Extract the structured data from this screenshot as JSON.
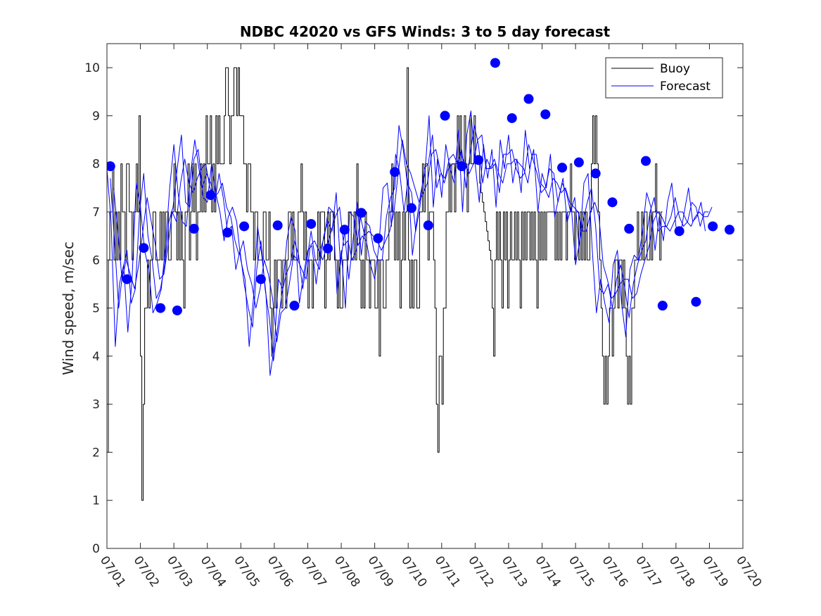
{
  "chart_data": {
    "type": "line",
    "title": "NDBC 42020 vs GFS Winds: 3 to 5 day forecast",
    "xlabel": "",
    "ylabel": "Wind speed, m/sec",
    "xlim": [
      0,
      19
    ],
    "ylim": [
      0,
      10.5
    ],
    "x_tick_labels": [
      "07/01",
      "07/02",
      "07/03",
      "07/04",
      "07/05",
      "07/06",
      "07/07",
      "07/08",
      "07/09",
      "07/10",
      "07/11",
      "07/12",
      "07/13",
      "07/14",
      "07/15",
      "07/16",
      "07/17",
      "07/18",
      "07/19",
      "07/20"
    ],
    "y_ticks": [
      0,
      1,
      2,
      3,
      4,
      5,
      6,
      7,
      8,
      9,
      10
    ],
    "grid": false,
    "legend": {
      "placement": "top-right",
      "entries": [
        "Buoy",
        "Forecast"
      ]
    },
    "colors": {
      "buoy": "#000000",
      "forecast": "#0000ff",
      "markers": "#0000ff"
    },
    "series": [
      {
        "name": "Buoy",
        "x_start": 0,
        "x_step": 0.0417,
        "values": [
          2,
          6,
          7,
          7,
          8,
          6,
          7,
          6,
          7,
          6,
          8,
          7,
          7,
          6,
          8,
          8,
          7,
          7,
          6,
          7,
          7,
          8,
          7,
          9,
          4,
          1,
          3,
          5,
          5,
          6,
          5,
          6,
          6,
          7,
          7,
          6,
          6,
          6,
          7,
          6,
          7,
          6,
          7,
          7,
          6,
          6,
          7,
          7,
          8,
          7,
          6,
          7,
          6,
          7,
          6,
          5,
          7,
          7,
          8,
          6,
          7,
          8,
          7,
          8,
          6,
          7,
          7,
          8,
          7,
          8,
          7,
          9,
          8,
          8,
          9,
          7,
          8,
          7,
          9,
          8,
          9,
          8,
          8,
          8,
          9,
          10,
          10,
          9,
          8,
          9,
          9,
          10,
          10,
          9,
          10,
          9,
          9,
          9,
          8,
          8,
          7,
          8,
          8,
          7,
          7,
          6,
          7,
          7,
          6,
          6,
          6,
          6,
          7,
          7,
          6,
          6,
          7,
          5,
          4,
          5,
          6,
          5,
          6,
          6,
          6,
          5,
          6,
          6,
          5,
          6,
          7,
          7,
          6,
          7,
          6,
          6,
          6,
          7,
          7,
          8,
          7,
          6,
          7,
          6,
          5,
          6,
          6,
          5,
          6,
          6,
          6,
          7,
          6,
          7,
          7,
          7,
          5,
          6,
          7,
          6,
          7,
          7,
          7,
          6,
          6,
          5,
          6,
          5,
          5,
          6,
          6,
          6,
          6,
          7,
          7,
          6,
          6,
          7,
          6,
          8,
          7,
          6,
          5,
          6,
          5,
          7,
          6,
          6,
          5,
          6,
          6,
          6,
          5,
          5,
          6,
          4,
          6,
          6,
          5,
          5,
          6,
          6,
          7,
          7,
          8,
          7,
          6,
          7,
          6,
          7,
          5,
          6,
          7,
          6,
          7,
          10,
          6,
          5,
          6,
          5,
          6,
          6,
          5,
          5,
          7,
          7,
          8,
          7,
          8,
          8,
          6,
          7,
          7,
          7,
          6,
          5,
          3,
          2,
          4,
          4,
          3,
          5,
          5,
          7,
          7,
          8,
          7,
          8,
          8,
          7,
          8,
          9,
          8,
          9,
          8,
          8,
          9,
          8,
          7,
          8,
          9,
          8,
          8,
          9,
          8,
          8,
          8,
          7.6,
          7.4,
          7.2,
          7.0,
          6.8,
          6.6,
          6.4,
          6.2,
          6,
          5,
          4,
          6,
          7,
          6,
          7,
          6,
          5,
          7,
          6,
          7,
          5,
          6,
          7,
          6,
          6,
          7,
          6,
          7,
          6,
          5,
          7,
          6,
          7,
          6,
          7,
          7,
          6,
          7,
          6,
          7,
          6,
          5,
          7,
          6,
          7,
          6,
          7,
          6,
          7,
          7,
          7,
          7,
          7,
          7,
          6,
          7,
          6,
          7,
          6,
          7,
          7,
          7,
          6,
          7,
          7,
          8,
          7,
          7,
          6,
          7,
          7,
          6,
          7,
          6,
          7,
          6,
          7,
          6,
          6,
          7,
          8,
          9,
          8,
          9,
          8,
          7,
          6,
          5,
          4,
          3,
          4,
          3,
          4,
          5,
          5,
          4,
          5,
          6,
          6,
          5,
          6,
          6,
          5,
          6,
          5,
          4,
          3,
          4,
          3,
          5,
          5,
          6,
          6,
          7,
          6,
          6,
          7,
          6,
          7,
          7,
          6,
          6,
          7,
          6,
          7,
          7,
          8,
          7,
          7,
          6,
          7
        ]
      },
      {
        "name": "Forecast",
        "x_start": 0,
        "x_step": 0.125,
        "values": [
          7.9,
          6.8,
          4.2,
          5.5,
          5.9,
          4.5,
          5.6,
          7.6,
          7.1,
          6.2,
          5.8,
          4.9,
          5.1,
          5.4,
          6.3,
          7.5,
          8.4,
          7.4,
          6.8,
          6.7,
          7.8,
          8.5,
          7.9,
          7.3,
          7.2,
          8.0,
          7.4,
          7.0,
          6.4,
          6.9,
          7.1,
          6.8,
          6.0,
          5.6,
          4.2,
          5.2,
          6.7,
          6.1,
          5.3,
          3.6,
          4.2,
          5.6,
          5.4,
          6.4,
          6.9,
          6.6,
          5.1,
          5.7,
          6.2,
          6.3,
          5.5,
          6.2,
          6.5,
          7.1,
          7.0,
          5.3,
          6.2,
          5.0,
          7.0,
          6.9,
          6.3,
          6.5,
          6.4,
          5.9,
          5.6,
          6.3,
          7.5,
          7.6,
          6.7,
          8.2,
          7.8,
          7.0,
          7.7,
          6.1,
          6.8,
          7.4,
          7.8,
          9.0,
          7.1,
          8.1,
          7.3,
          8.4,
          7.9,
          7.6,
          8.7,
          7.0,
          8.6,
          9.1,
          8.0,
          7.2,
          8.4,
          7.7,
          8.3,
          7.1,
          8.5,
          7.9,
          8.6,
          7.6,
          8.1,
          7.4,
          8.7,
          7.9,
          8.3,
          7.0,
          7.8,
          7.5,
          8.2,
          6.9,
          7.3,
          7.7,
          6.8,
          7.1,
          5.9,
          6.4,
          7.6,
          7.8,
          6.2,
          4.9,
          5.6,
          5.1,
          4.7,
          5.9,
          6.2,
          5.1,
          4.4,
          5.8,
          6.1,
          6.0,
          6.6,
          7.4,
          7.1,
          6.2,
          6.9,
          6.4,
          7.2,
          7.6,
          6.7,
          6.5,
          7.0,
          7.5,
          6.8,
          6.9,
          7.2,
          6.6
        ]
      },
      {
        "name": "",
        "x_start": 0.1,
        "x_step": 0.125,
        "values": [
          7.7,
          6.4,
          5.0,
          5.8,
          6.2,
          5.1,
          5.4,
          7.0,
          7.8,
          6.5,
          6.0,
          5.2,
          5.4,
          5.9,
          6.8,
          7.1,
          7.9,
          8.6,
          7.2,
          7.1,
          8.1,
          8.3,
          7.5,
          7.8,
          7.6,
          7.2,
          7.8,
          7.3,
          6.6,
          6.7,
          5.8,
          6.2,
          5.5,
          5.0,
          4.6,
          5.8,
          6.4,
          5.4,
          4.8,
          3.9,
          4.6,
          5.3,
          5.7,
          5.9,
          6.4,
          6.1,
          5.4,
          6.0,
          6.6,
          6.0,
          5.8,
          6.5,
          6.8,
          6.6,
          7.4,
          5.9,
          6.6,
          5.6,
          6.4,
          7.2,
          6.1,
          6.8,
          6.7,
          6.2,
          6.0,
          6.0,
          6.9,
          7.3,
          7.5,
          8.8,
          8.3,
          7.6,
          7.4,
          6.6,
          7.1,
          7.9,
          8.0,
          8.6,
          7.5,
          7.8,
          7.7,
          8.1,
          8.2,
          8.0,
          8.3,
          7.5,
          8.2,
          8.8,
          8.4,
          7.6,
          8.1,
          7.9,
          8.0,
          7.4,
          8.2,
          8.2,
          8.3,
          7.9,
          7.7,
          7.8,
          8.4,
          8.1,
          7.8,
          7.4,
          7.5,
          7.9,
          7.8,
          7.2,
          7.6,
          7.4,
          7.0,
          7.3,
          6.3,
          6.8,
          7.2,
          7.5,
          6.7,
          5.4,
          5.3,
          5.5,
          5.0,
          5.6,
          5.9,
          5.4,
          4.8,
          5.5,
          5.9,
          6.2,
          6.4,
          7.0,
          7.3,
          6.6,
          6.7,
          6.7,
          6.9,
          7.3,
          6.9,
          6.7,
          6.8,
          7.2,
          7.1,
          6.7,
          7.0,
          7.0
        ]
      },
      {
        "name": "",
        "x_start": 0.2,
        "x_step": 0.125,
        "values": [
          7.5,
          6.6,
          5.6,
          6.0,
          5.7,
          5.4,
          5.9,
          6.6,
          7.3,
          6.8,
          6.3,
          5.6,
          5.7,
          6.3,
          7.0,
          6.8,
          7.6,
          8.1,
          7.6,
          7.4,
          7.7,
          7.9,
          8.0,
          7.5,
          7.3,
          7.4,
          7.6,
          7.1,
          6.9,
          6.4,
          6.1,
          6.4,
          5.8,
          5.5,
          5.0,
          5.4,
          6.0,
          5.7,
          5.2,
          4.3,
          4.9,
          5.0,
          5.5,
          6.1,
          6.0,
          5.8,
          5.6,
          6.3,
          6.4,
          6.2,
          6.0,
          6.3,
          6.6,
          6.9,
          7.1,
          6.3,
          6.4,
          6.0,
          6.2,
          6.9,
          6.5,
          6.6,
          6.5,
          6.4,
          6.2,
          6.4,
          6.6,
          7.0,
          7.8,
          8.5,
          8.0,
          7.8,
          7.5,
          7.2,
          7.4,
          7.6,
          8.2,
          8.3,
          7.9,
          7.6,
          7.9,
          8.0,
          8.0,
          8.2,
          8.0,
          7.8,
          8.0,
          8.5,
          8.6,
          7.9,
          7.9,
          8.1,
          7.8,
          7.6,
          8.0,
          8.0,
          8.1,
          8.0,
          7.9,
          7.6,
          8.2,
          8.2,
          7.6,
          7.5,
          7.3,
          7.7,
          7.6,
          7.4,
          7.5,
          7.2,
          7.1,
          7.0,
          6.6,
          6.6,
          7.0,
          7.2,
          6.9,
          5.9,
          5.6,
          5.2,
          5.3,
          5.5,
          5.6,
          5.6,
          5.2,
          5.3,
          5.7,
          6.0,
          6.3,
          6.8,
          7.0,
          6.9,
          6.7,
          6.6,
          6.8,
          7.0,
          7.0,
          6.8,
          6.7,
          6.9,
          7.0,
          6.9,
          6.9,
          7.1
        ]
      },
      {
        "name": "",
        "marker": "filled-circle",
        "x": [
          0.1,
          0.6,
          1.1,
          1.6,
          2.1,
          2.6,
          3.1,
          3.6,
          4.1,
          4.6,
          5.1,
          5.6,
          6.1,
          6.6,
          7.1,
          7.6,
          8.1,
          8.6,
          9.1,
          9.6,
          10.1,
          10.6,
          11.1,
          11.6,
          12.1,
          12.6,
          13.1,
          13.6,
          14.1,
          14.6,
          15.1,
          15.6,
          16.1,
          16.6,
          17.1,
          17.6,
          18.1,
          18.6
        ],
        "values": [
          7.95,
          5.6,
          6.25,
          5.0,
          4.95,
          6.65,
          7.35,
          6.57,
          6.7,
          5.6,
          6.72,
          5.05,
          6.75,
          6.24,
          6.63,
          6.98,
          6.45,
          7.83,
          7.08,
          6.72,
          9.0,
          7.95,
          8.08,
          10.1,
          8.95,
          9.35,
          9.03,
          7.92,
          8.03,
          7.8,
          7.2,
          6.65,
          8.06,
          5.05,
          6.6,
          5.13,
          6.7,
          6.63
        ]
      }
    ]
  }
}
